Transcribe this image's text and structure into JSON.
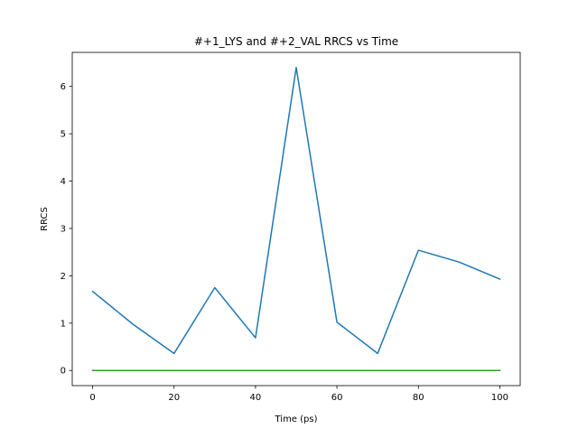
{
  "chart_data": {
    "type": "line",
    "title": "#+1_LYS and #+2_VAL RRCS vs Time",
    "xlabel": "Time (ps)",
    "ylabel": "RRCS",
    "x": [
      0,
      10,
      20,
      30,
      40,
      50,
      60,
      70,
      80,
      90,
      100
    ],
    "xlim": [
      -5,
      105
    ],
    "ylim": [
      -0.32,
      6.72
    ],
    "xticks": [
      0,
      20,
      40,
      60,
      80,
      100
    ],
    "yticks": [
      0,
      1,
      2,
      3,
      4,
      5,
      6
    ],
    "xtick_labels": [
      "0",
      "20",
      "40",
      "60",
      "80",
      "100"
    ],
    "ytick_labels": [
      "0",
      "1",
      "2",
      "3",
      "4",
      "5",
      "6"
    ],
    "grid": false,
    "legend": "none",
    "series": [
      {
        "color": "#1f77b4",
        "values": [
          1.67,
          0.97,
          0.36,
          1.75,
          0.69,
          6.4,
          1.02,
          0.36,
          2.54,
          2.29,
          1.93
        ]
      },
      {
        "color": "#2ca02c",
        "values": [
          0,
          0,
          0,
          0,
          0,
          0,
          0,
          0,
          0,
          0,
          0
        ]
      }
    ]
  }
}
